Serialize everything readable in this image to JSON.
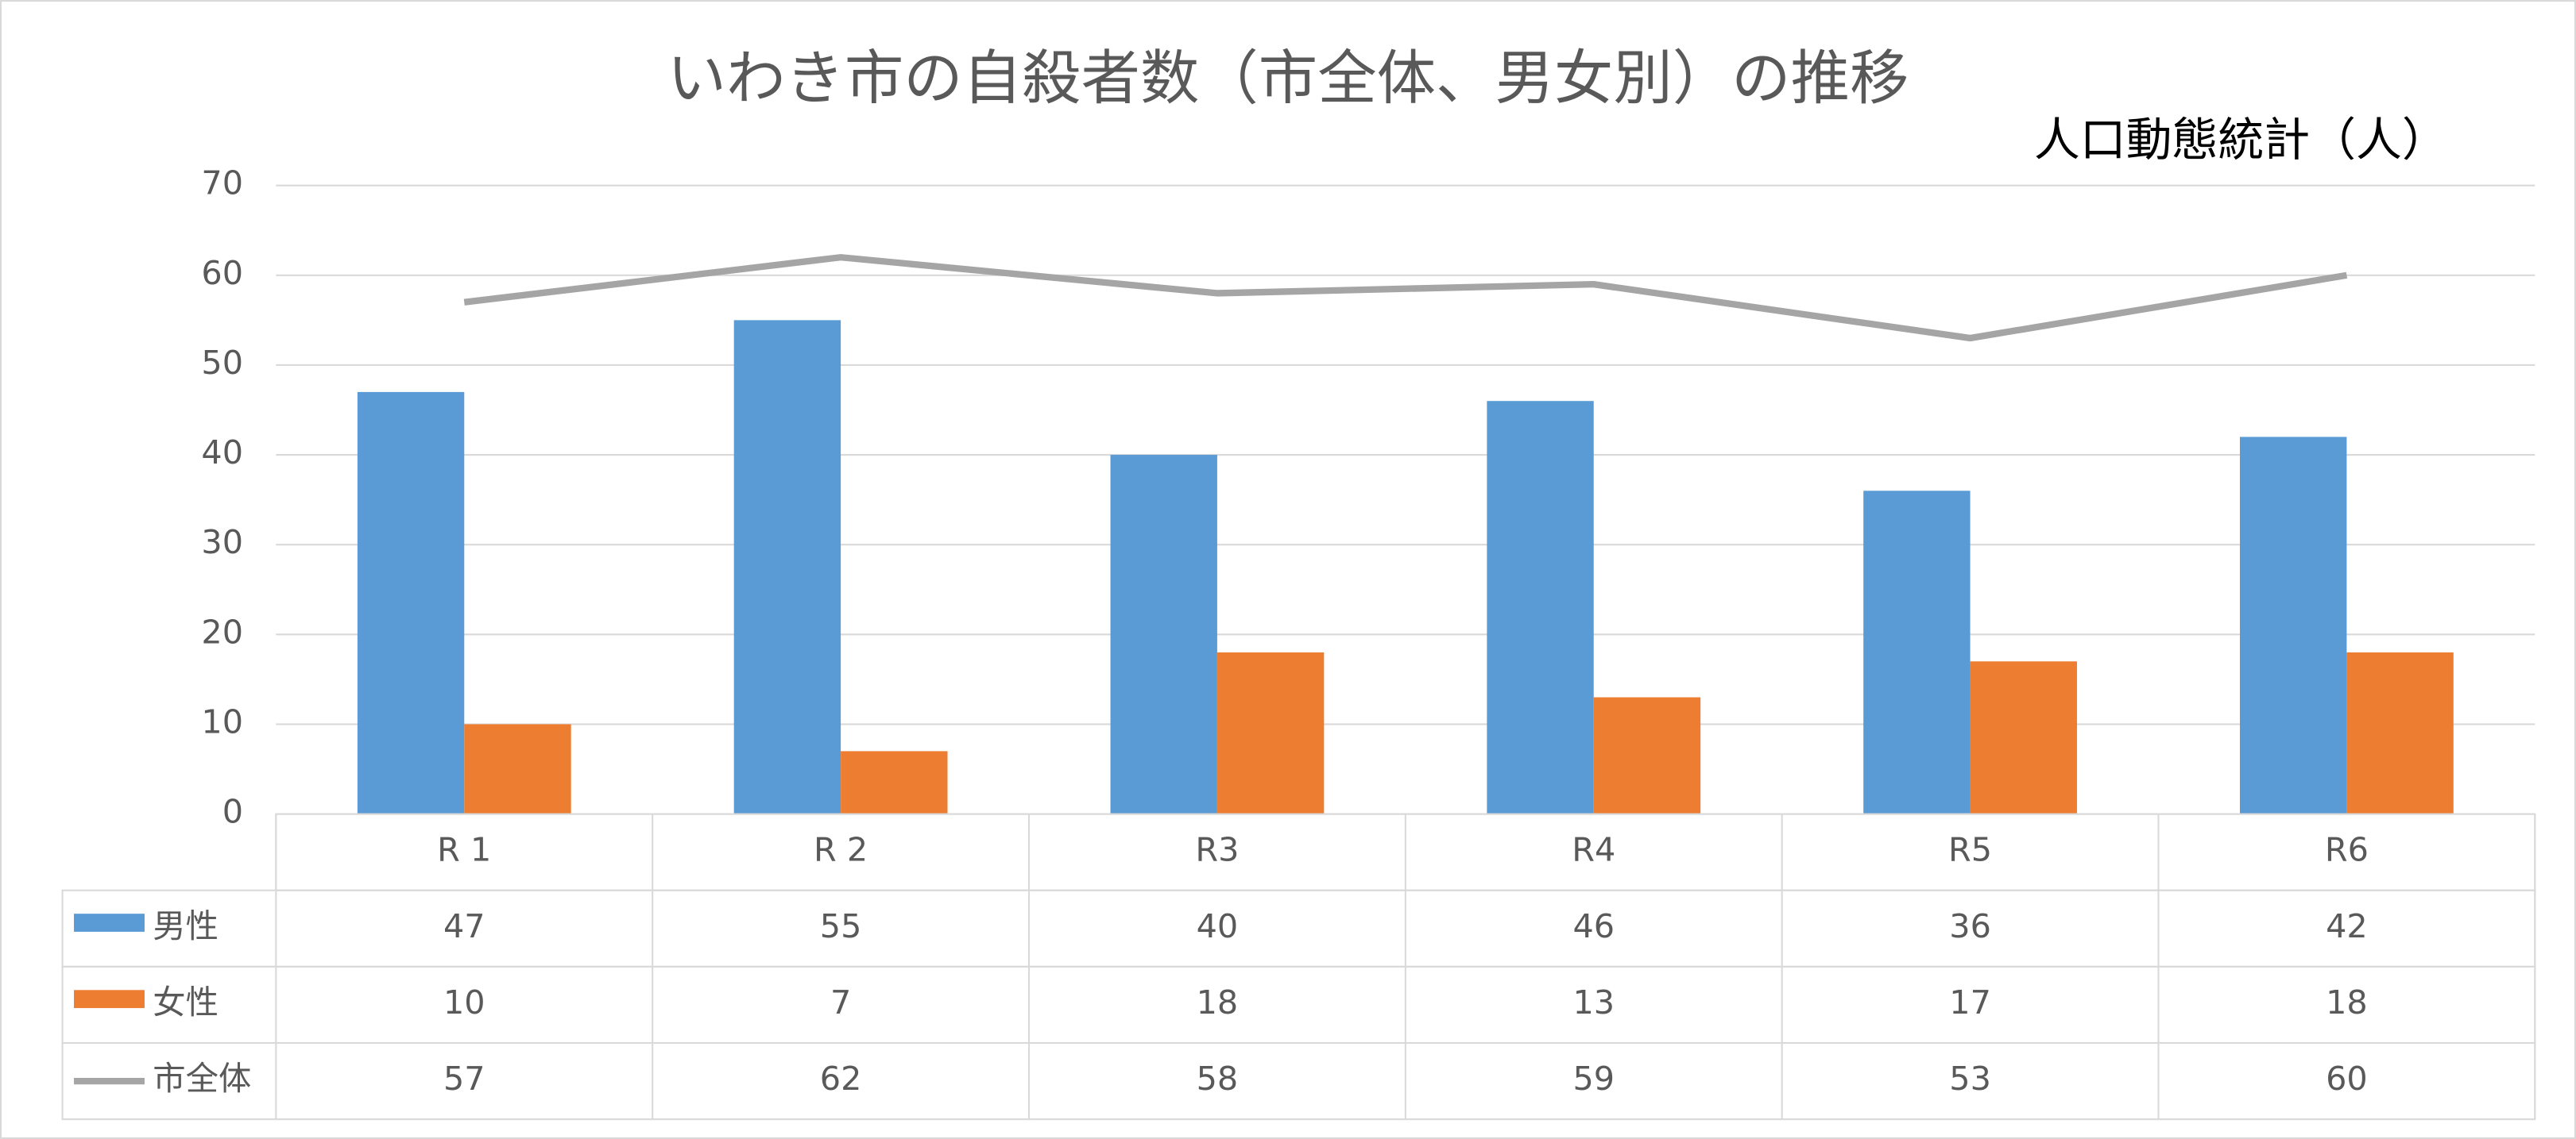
{
  "chart_data": {
    "type": "bar",
    "title": "いわき市の自殺者数（市全体、男女別）の推移",
    "annotation": "人口動態統計（人）",
    "categories": [
      "R 1",
      "R 2",
      "R3",
      "R4",
      "R5",
      "R6"
    ],
    "series": [
      {
        "name": "男性",
        "color": "#5b9bd5",
        "values": [
          47,
          55,
          40,
          46,
          36,
          42
        ]
      },
      {
        "name": "女性",
        "color": "#ed7d31",
        "values": [
          10,
          7,
          18,
          13,
          17,
          18
        ]
      },
      {
        "name": "市全体",
        "color": "#a5a5a5",
        "type": "line",
        "values": [
          57,
          62,
          58,
          59,
          53,
          60
        ]
      }
    ],
    "ylim": [
      0,
      70
    ],
    "yticks": [
      0,
      10,
      20,
      30,
      40,
      50,
      60,
      70
    ],
    "grid": true
  }
}
